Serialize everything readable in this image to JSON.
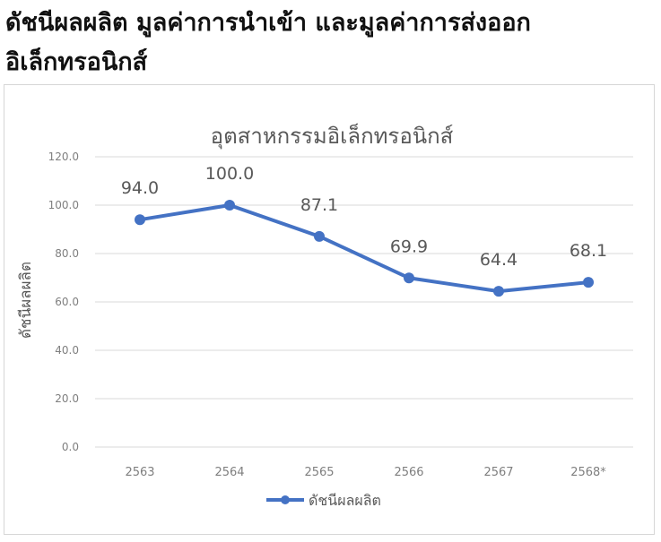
{
  "heading": {
    "line1": "ดัชนีผลผลิต มูลค่าการนำเข้า และมูลค่าการส่งออก",
    "line2": "อิเล็กทรอนิกส์"
  },
  "chart_data": {
    "type": "line",
    "title": "อุตสาหกรรมอิเล็กทรอนิกส์",
    "xlabel": "",
    "ylabel": "ดัชนีผลผลิต",
    "categories": [
      "2563",
      "2564",
      "2565",
      "2566",
      "2567",
      "2568*"
    ],
    "series": [
      {
        "name": "ดัชนีผลผลิต",
        "values": [
          94.0,
          100.0,
          87.1,
          69.9,
          64.4,
          68.1
        ],
        "color": "#4472c4"
      }
    ],
    "data_labels": [
      "94.0",
      "100.0",
      "87.1",
      "69.9",
      "64.4",
      "68.1"
    ],
    "yticks": [
      "0.0",
      "20.0",
      "40.0",
      "60.0",
      "80.0",
      "100.0",
      "120.0"
    ],
    "ylim": [
      0,
      120
    ],
    "grid": true,
    "legend": "bottom"
  }
}
